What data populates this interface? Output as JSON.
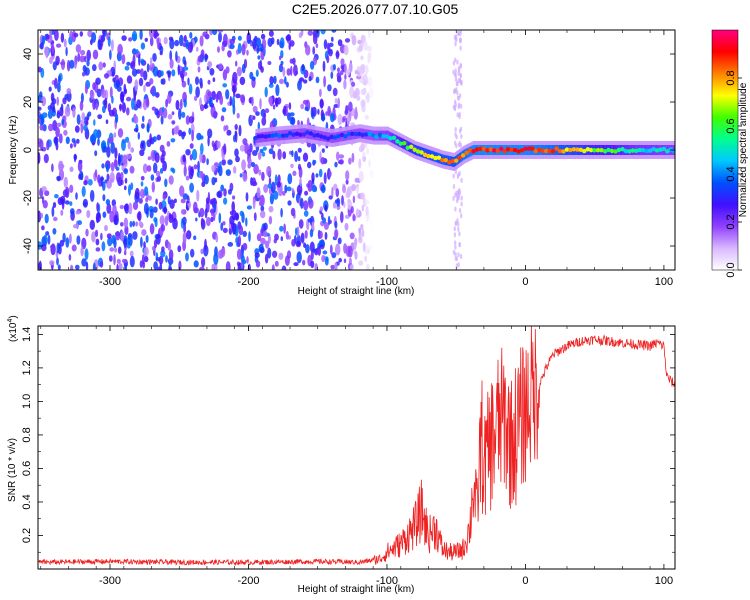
{
  "title": "C2E5.2026.077.07.10.G05",
  "chart_data": [
    {
      "type": "heatmap",
      "xlabel": "Height of straight line (km)",
      "ylabel": "Frequency (Hz)",
      "xlim": [
        -352,
        108
      ],
      "ylim": [
        -50,
        50
      ],
      "x_ticks": [
        -300,
        -200,
        -100,
        0,
        100
      ],
      "y_ticks": [
        -40,
        -20,
        0,
        20,
        40
      ],
      "colorbar": {
        "label": "Normalized spectral amplitude",
        "range": [
          0,
          1
        ],
        "ticks": [
          0.0,
          0.2,
          0.4,
          0.6,
          0.8
        ],
        "colors": [
          "#ffffff",
          "#d9b8ff",
          "#9040ff",
          "#4010ff",
          "#0050ff",
          "#00c8ff",
          "#00ff90",
          "#40ff00",
          "#ffff00",
          "#ff8000",
          "#ff0000",
          "#ff0080"
        ]
      },
      "ridge": {
        "x": [
          -195,
          -180,
          -160,
          -140,
          -120,
          -110,
          -100,
          -90,
          -80,
          -70,
          -60,
          -52,
          -45,
          -38,
          -30,
          -20,
          -10,
          0,
          20,
          50,
          80,
          108
        ],
        "frequency": [
          5,
          6,
          7,
          5,
          7,
          6,
          6,
          3,
          0,
          -2,
          -4,
          -5,
          -2,
          0,
          0,
          0,
          0,
          0,
          0,
          0,
          0,
          0
        ],
        "amplitude": [
          0.3,
          0.35,
          0.3,
          0.3,
          0.35,
          0.4,
          0.45,
          0.6,
          0.7,
          0.75,
          0.8,
          0.8,
          0.85,
          0.9,
          0.9,
          0.9,
          0.9,
          0.9,
          0.85,
          0.65,
          0.5,
          0.45
        ]
      },
      "noise_region": [
        -352,
        -110
      ]
    },
    {
      "type": "line",
      "xlabel": "Height of straight line (km)",
      "ylabel": "SNR (10 * v/v)",
      "multiplier": "(x10",
      "multiplier_exp": "4",
      "xlim": [
        -352,
        108
      ],
      "ylim": [
        0,
        1.45
      ],
      "x_ticks": [
        -300,
        -200,
        -100,
        0,
        100
      ],
      "y_ticks": [
        0.2,
        0.4,
        0.6,
        0.8,
        1.0,
        1.2,
        1.4
      ],
      "color": "#ee2222",
      "series": [
        {
          "x": [
            -352,
            -300,
            -250,
            -200,
            -150,
            -120,
            -105,
            -100,
            -90,
            -80,
            -75,
            -70,
            -65,
            -60,
            -55,
            -50,
            -45,
            -40,
            -38,
            -35,
            -32,
            -30,
            -25,
            -20,
            -15,
            -10,
            -5,
            0,
            5,
            10,
            15,
            20,
            30,
            40,
            50,
            60,
            70,
            80,
            90,
            95,
            100,
            102,
            105,
            108
          ],
          "y": [
            0.04,
            0.045,
            0.04,
            0.04,
            0.045,
            0.04,
            0.06,
            0.1,
            0.15,
            0.25,
            0.35,
            0.2,
            0.25,
            0.12,
            0.1,
            0.1,
            0.12,
            0.25,
            0.5,
            0.35,
            0.8,
            0.6,
            0.75,
            0.85,
            0.9,
            0.75,
            0.85,
            0.95,
            1.05,
            1.1,
            1.2,
            1.28,
            1.33,
            1.36,
            1.37,
            1.36,
            1.35,
            1.34,
            1.33,
            1.35,
            1.33,
            1.15,
            1.12,
            1.1
          ]
        }
      ]
    }
  ]
}
